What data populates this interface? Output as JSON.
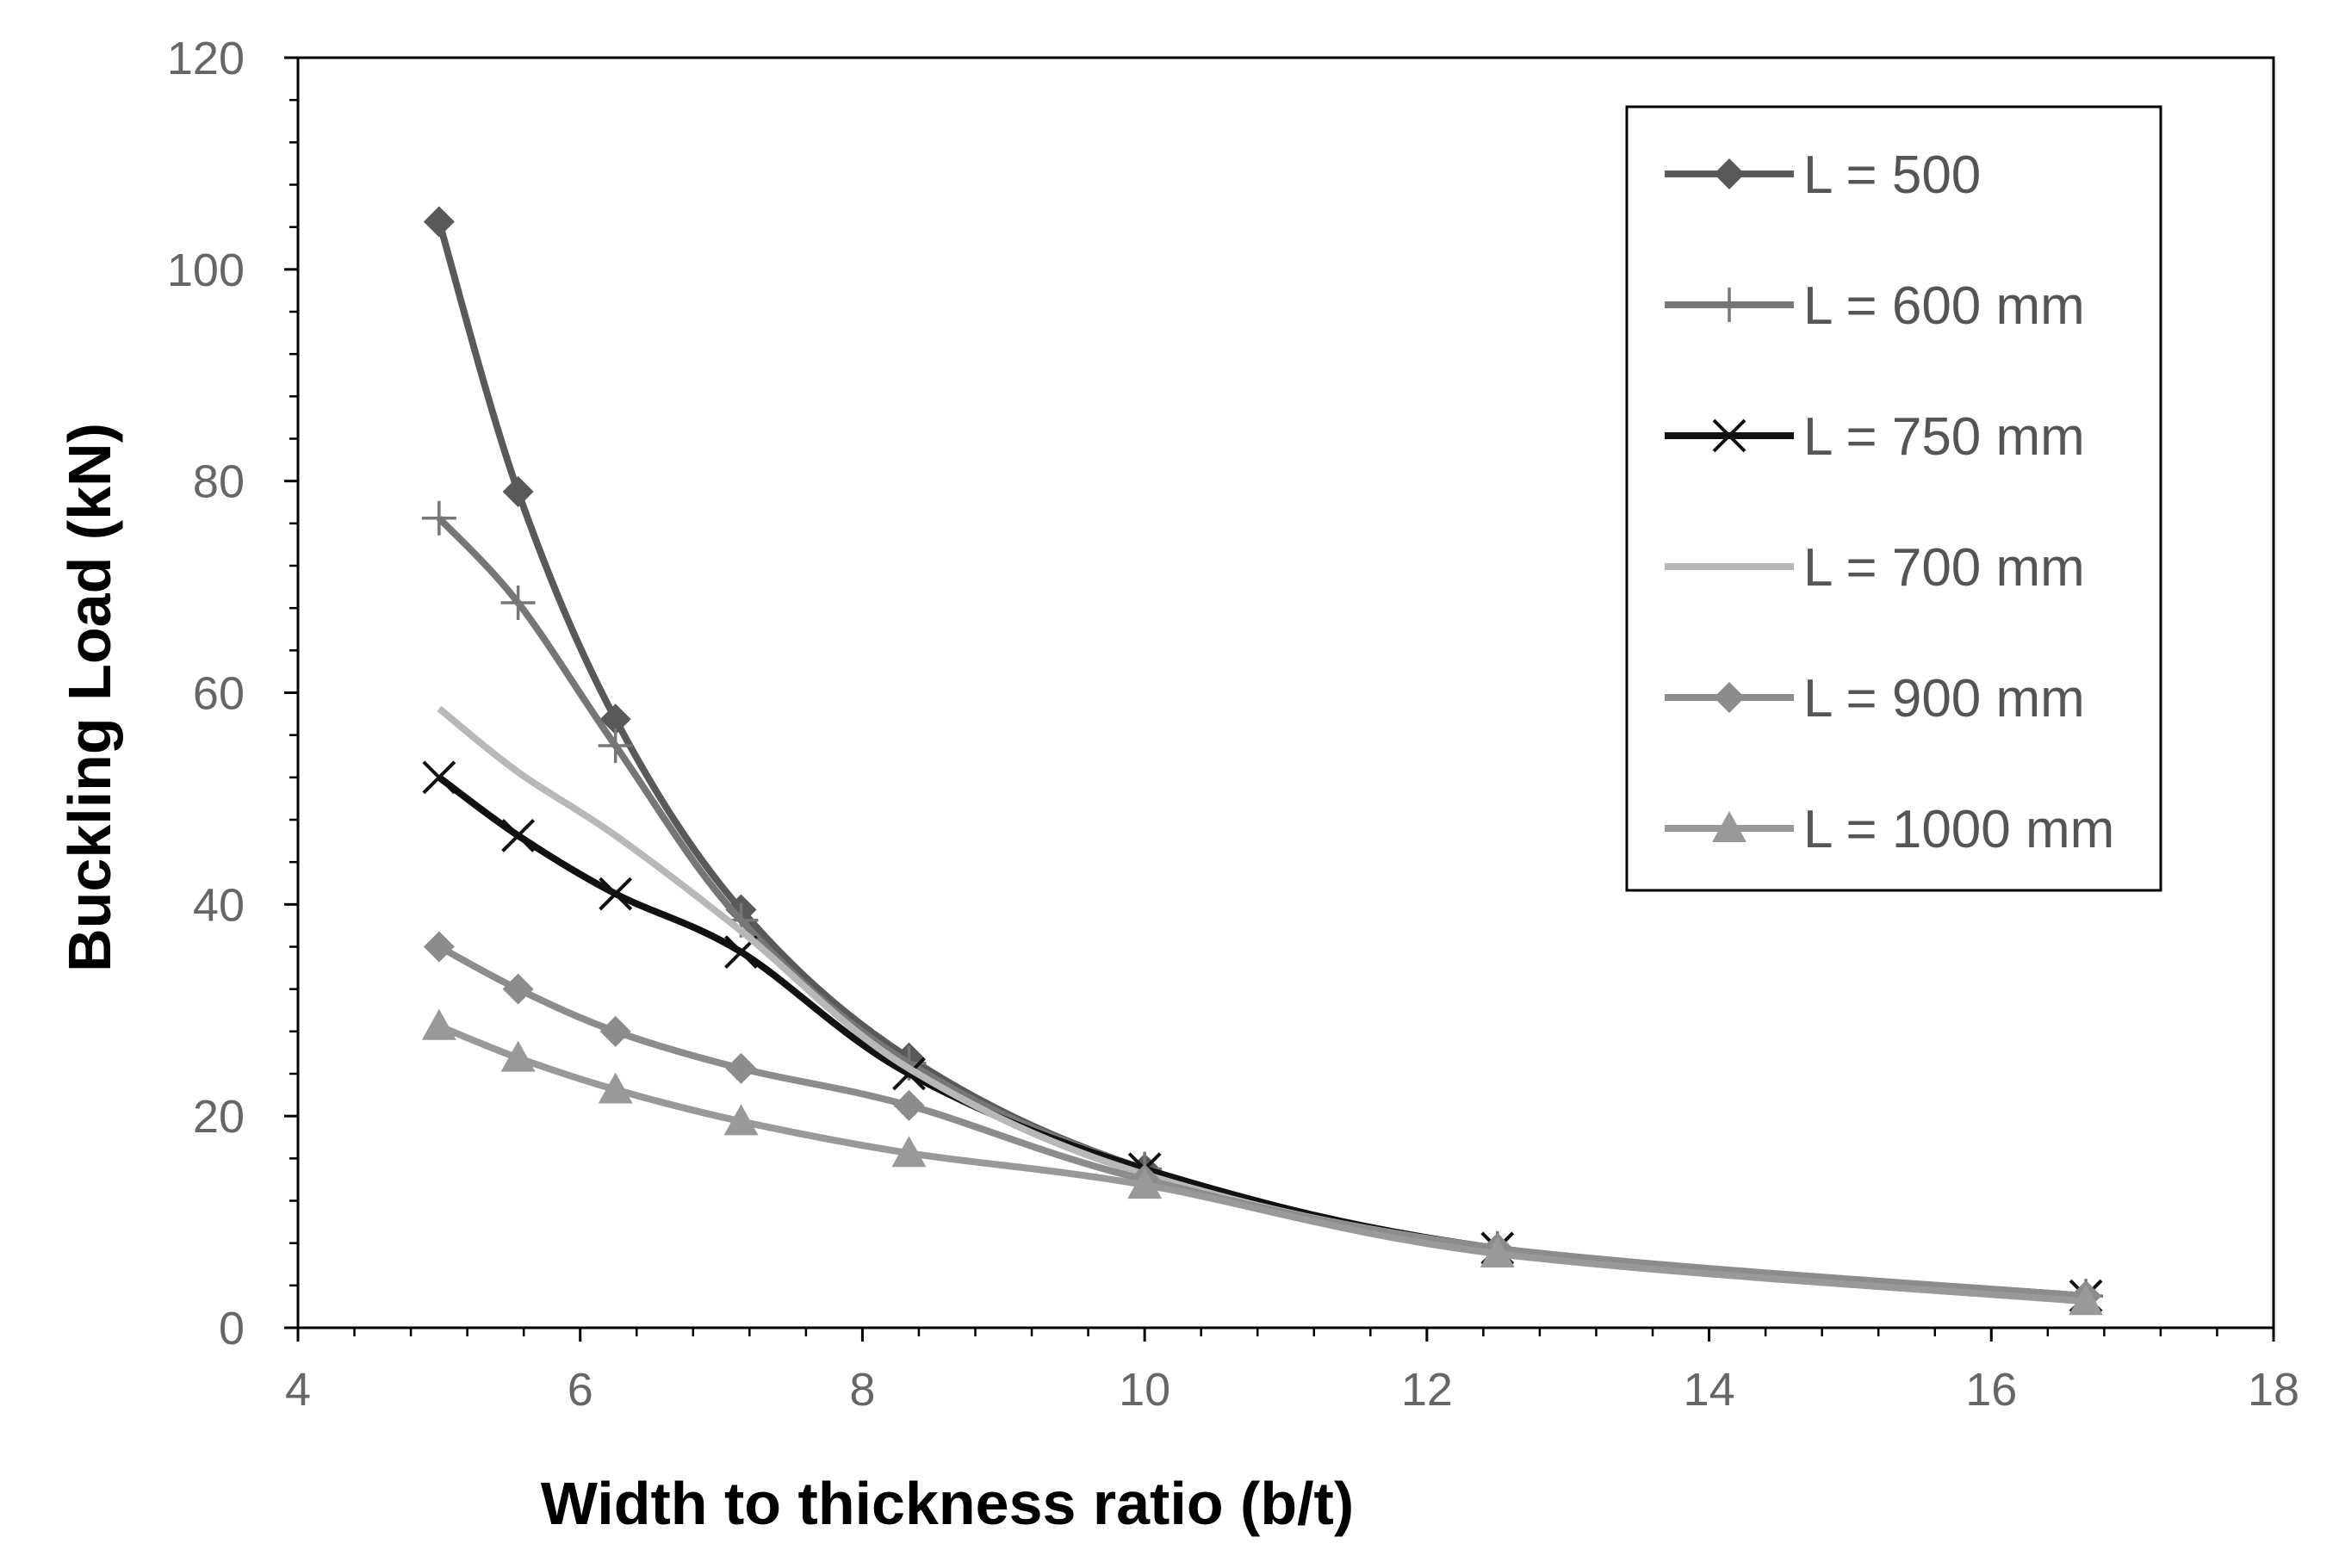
{
  "chart_data": {
    "type": "line",
    "xlabel": "Width to thickness ratio (b/t)",
    "ylabel": "Buckling Load (kN)",
    "xlim": [
      4,
      18
    ],
    "ylim": [
      0,
      120
    ],
    "xticks": [
      "4",
      "6",
      "8",
      "10",
      "12",
      "14",
      "16",
      "18"
    ],
    "yticks": [
      "0",
      "20",
      "40",
      "60",
      "80",
      "100",
      "120"
    ],
    "grid": false,
    "legend_position": "top-right",
    "series": [
      {
        "name": "L = 500",
        "marker": "diamond",
        "color": "#595959",
        "x": [
          5.0,
          5.56,
          6.25,
          7.14,
          8.33,
          10.0,
          12.5,
          16.67
        ],
        "y": [
          104.5,
          79.0,
          57.5,
          39.5,
          25.5,
          15.0,
          7.5,
          3.0
        ]
      },
      {
        "name": "L = 600 mm",
        "marker": "plus",
        "color": "#767676",
        "x": [
          5.0,
          5.56,
          6.25,
          7.14,
          8.33,
          10.0,
          12.5,
          16.67
        ],
        "y": [
          76.5,
          68.5,
          55.0,
          38.5,
          25.0,
          15.0,
          7.5,
          3.0
        ]
      },
      {
        "name": "L = 750 mm",
        "marker": "x",
        "color": "#111111",
        "x": [
          5.0,
          5.56,
          6.25,
          7.14,
          8.33,
          10.0,
          12.5,
          16.67
        ],
        "y": [
          52.0,
          46.5,
          41.0,
          35.5,
          24.0,
          15.0,
          7.5,
          3.0
        ]
      },
      {
        "name": "L = 700 mm",
        "marker": "none",
        "color": "#b8b8b8",
        "x": [
          5.0,
          5.56,
          6.25,
          7.14,
          8.33,
          10.0,
          12.5,
          16.67
        ],
        "y": [
          58.5,
          52.5,
          46.5,
          37.5,
          24.5,
          14.5,
          7.5,
          3.0
        ]
      },
      {
        "name": "L = 900 mm",
        "marker": "diamond",
        "color": "#8c8c8c",
        "x": [
          5.0,
          5.56,
          6.25,
          7.14,
          8.33,
          10.0,
          12.5,
          16.67
        ],
        "y": [
          36.0,
          32.0,
          28.0,
          24.5,
          21.0,
          14.0,
          7.5,
          3.0
        ]
      },
      {
        "name": "L = 1000 mm",
        "marker": "triangle",
        "color": "#999999",
        "x": [
          5.0,
          5.56,
          6.25,
          7.14,
          8.33,
          10.0,
          12.5,
          16.67
        ],
        "y": [
          28.5,
          25.5,
          22.5,
          19.5,
          16.5,
          13.5,
          7.0,
          2.5
        ]
      }
    ]
  }
}
